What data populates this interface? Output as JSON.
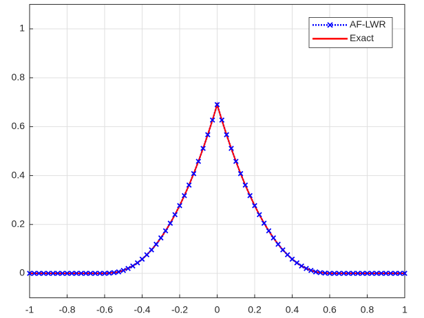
{
  "chart_data": {
    "type": "line",
    "x": [
      -1,
      -0.975,
      -0.95,
      -0.925,
      -0.9,
      -0.875,
      -0.85,
      -0.825,
      -0.8,
      -0.775,
      -0.75,
      -0.725,
      -0.7,
      -0.675,
      -0.65,
      -0.625,
      -0.6,
      -0.575,
      -0.55,
      -0.525,
      -0.5,
      -0.475,
      -0.45,
      -0.425,
      -0.4,
      -0.375,
      -0.35,
      -0.325,
      -0.3,
      -0.275,
      -0.25,
      -0.225,
      -0.2,
      -0.175,
      -0.15,
      -0.125,
      -0.1,
      -0.075,
      -0.05,
      -0.025,
      0,
      0.025,
      0.05,
      0.075,
      0.1,
      0.125,
      0.15,
      0.175,
      0.2,
      0.225,
      0.25,
      0.275,
      0.3,
      0.325,
      0.35,
      0.375,
      0.4,
      0.425,
      0.45,
      0.475,
      0.5,
      0.525,
      0.55,
      0.575,
      0.6,
      0.625,
      0.65,
      0.675,
      0.7,
      0.725,
      0.75,
      0.775,
      0.8,
      0.825,
      0.85,
      0.875,
      0.9,
      0.925,
      0.95,
      0.975,
      1
    ],
    "series": [
      {
        "name": "AF-LWR",
        "color": "#0000ff",
        "line_style": "dotted",
        "marker": "x",
        "values": [
          0,
          0,
          0,
          0,
          0,
          0,
          0,
          0,
          0,
          0,
          0,
          0,
          0,
          0,
          0,
          0,
          0,
          0.001,
          0.003,
          0.006,
          0.012,
          0.02,
          0.03,
          0.043,
          0.058,
          0.076,
          0.096,
          0.119,
          0.145,
          0.174,
          0.205,
          0.24,
          0.277,
          0.318,
          0.361,
          0.408,
          0.458,
          0.511,
          0.567,
          0.627,
          0.69,
          0.627,
          0.567,
          0.511,
          0.458,
          0.408,
          0.361,
          0.318,
          0.277,
          0.24,
          0.205,
          0.174,
          0.145,
          0.119,
          0.096,
          0.076,
          0.058,
          0.043,
          0.03,
          0.02,
          0.012,
          0.006,
          0.003,
          0.001,
          0,
          0,
          0,
          0,
          0,
          0,
          0,
          0,
          0,
          0,
          0,
          0,
          0,
          0,
          0,
          0,
          0
        ]
      },
      {
        "name": "Exact",
        "color": "#ff0000",
        "line_style": "solid",
        "marker": "none",
        "values": [
          0,
          0,
          0,
          0,
          0,
          0,
          0,
          0,
          0,
          0,
          0,
          0,
          0,
          0,
          0,
          0,
          0,
          0.001,
          0.003,
          0.006,
          0.012,
          0.02,
          0.03,
          0.043,
          0.058,
          0.076,
          0.096,
          0.119,
          0.145,
          0.174,
          0.205,
          0.24,
          0.277,
          0.318,
          0.361,
          0.408,
          0.458,
          0.511,
          0.567,
          0.627,
          0.69,
          0.627,
          0.567,
          0.511,
          0.458,
          0.408,
          0.361,
          0.318,
          0.277,
          0.24,
          0.205,
          0.174,
          0.145,
          0.119,
          0.096,
          0.076,
          0.058,
          0.043,
          0.03,
          0.02,
          0.012,
          0.006,
          0.003,
          0.001,
          0,
          0,
          0,
          0,
          0,
          0,
          0,
          0,
          0,
          0,
          0,
          0,
          0,
          0,
          0,
          0,
          0
        ]
      }
    ],
    "xlim": [
      -1,
      1
    ],
    "xticks": [
      -1,
      -0.8,
      -0.6,
      -0.4,
      -0.2,
      0,
      0.2,
      0.4,
      0.6,
      0.8,
      1
    ],
    "ylim": [
      -0.1,
      1.1
    ],
    "yticks": [
      0,
      0.2,
      0.4,
      0.6,
      0.8,
      1
    ],
    "grid": true,
    "legend": "northeast"
  }
}
